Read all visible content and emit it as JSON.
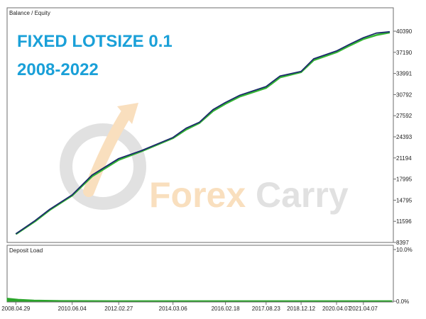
{
  "panels": {
    "main_label": "Balance / Equity",
    "deposit_label": "Deposit Load"
  },
  "headline": {
    "line1": "FIXED LOTSIZE 0.1",
    "line2": "2008-2022"
  },
  "watermark": {
    "part1": "Forex",
    "part2": "Carry"
  },
  "colors": {
    "balance": "#1b2a6b",
    "equity": "#35b535",
    "deposit_load": "#2aa52a",
    "headline": "#1aa0d8",
    "watermark_orange": "#f5c58a",
    "watermark_grey": "#c9c9c9"
  },
  "chart_data": [
    {
      "type": "line",
      "panel": "Balance / Equity",
      "series": [
        {
          "name": "Balance",
          "x": [
            "2008.04.29",
            "2009.01.15",
            "2009.08.01",
            "2010.06.04",
            "2011.03.01",
            "2012.02.27",
            "2013.01.01",
            "2014.03.06",
            "2014.09.01",
            "2015.03.01",
            "2015.09.01",
            "2016.02.18",
            "2016.09.01",
            "2017.08.23",
            "2018.03.01",
            "2018.12.12",
            "2019.06.01",
            "2020.04.07",
            "2020.10.01",
            "2021.04.07",
            "2021.10.01",
            "2022.04.01"
          ],
          "values": [
            9700,
            11700,
            13400,
            15600,
            18600,
            21100,
            22300,
            24300,
            25700,
            26600,
            28500,
            29600,
            30700,
            32000,
            33600,
            34300,
            36200,
            37400,
            38400,
            39400,
            40100,
            40300
          ]
        },
        {
          "name": "Equity",
          "x": [
            "2008.04.29",
            "2009.01.15",
            "2009.08.01",
            "2010.06.04",
            "2011.03.01",
            "2012.02.27",
            "2013.01.01",
            "2014.03.06",
            "2014.09.01",
            "2015.03.01",
            "2015.09.01",
            "2016.02.18",
            "2016.09.01",
            "2017.08.23",
            "2018.03.01",
            "2018.12.12",
            "2019.06.01",
            "2020.04.07",
            "2020.10.01",
            "2021.04.07",
            "2021.10.01",
            "2022.04.01"
          ],
          "values": [
            9650,
            11600,
            13300,
            15500,
            18400,
            20900,
            22200,
            24200,
            25500,
            26500,
            28300,
            29400,
            30500,
            31800,
            33400,
            34200,
            36000,
            37200,
            38200,
            39200,
            39800,
            40200
          ]
        }
      ],
      "y_ticks": [
        "40390",
        "37190",
        "33991",
        "30792",
        "27592",
        "24393",
        "21194",
        "17995",
        "14795",
        "11596",
        "8397"
      ],
      "x_ticks": [
        "2008.04.29",
        "2010.06.04",
        "2012.02.27",
        "2014.03.06",
        "2016.02.18",
        "2017.08.23",
        "2018.12.12",
        "2020.04.07",
        "2021.04.07"
      ],
      "ylim": [
        8397,
        40390
      ],
      "xlim": [
        "2008.01.01",
        "2022.04.30"
      ]
    },
    {
      "type": "area",
      "panel": "Deposit Load",
      "series": [
        {
          "name": "Deposit Load",
          "x": [
            "2008.01.01",
            "2008.06.01",
            "2009.01.01",
            "2010.01.01",
            "2012.01.01",
            "2014.01.01",
            "2016.01.01",
            "2018.01.01",
            "2020.01.01",
            "2022.04.30"
          ],
          "values": [
            0.6,
            0.4,
            0.25,
            0.15,
            0.12,
            0.12,
            0.12,
            0.12,
            0.12,
            0.12
          ]
        }
      ],
      "y_ticks": [
        "10.0%",
        "0.0%"
      ],
      "ylim": [
        0,
        10
      ]
    }
  ]
}
